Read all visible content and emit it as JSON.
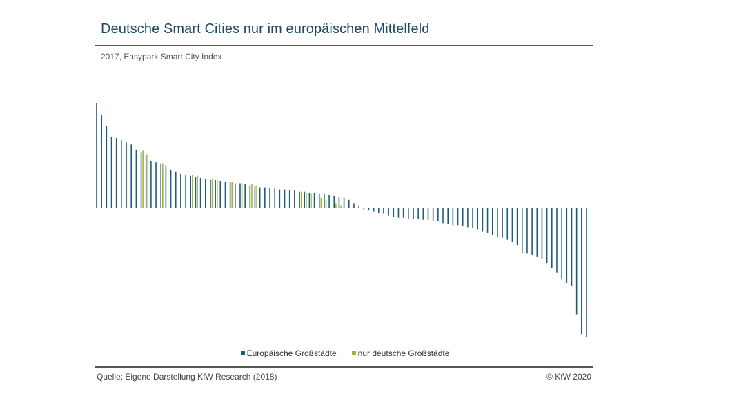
{
  "header": {
    "title": "Deutsche Smart Cities nur im europäischen Mittelfeld",
    "subtitle": "2017, Easypark Smart City Index"
  },
  "legend": {
    "items": [
      {
        "label": "Europäische Großstädte",
        "color": "#1f5c7a"
      },
      {
        "label": "nur deutsche Großstädte",
        "color": "#a3b52d"
      }
    ]
  },
  "footer": {
    "source": "Quelle: Eigene Darstellung KfW Research (2018)",
    "copyright": "© KfW 2020"
  },
  "chart_data": {
    "type": "bar",
    "xlabel": "",
    "ylabel": "",
    "ylim": [
      -1.22,
      1.0
    ],
    "grid": false,
    "legend_position": "bottom-center",
    "series": [
      {
        "name": "Europäische Großstädte",
        "color": "#1f5c7a",
        "values": [
          1.0,
          0.89,
          0.79,
          0.68,
          0.67,
          0.65,
          0.63,
          0.61,
          0.56,
          0.53,
          0.51,
          0.45,
          0.44,
          0.43,
          0.41,
          0.37,
          0.35,
          0.33,
          0.32,
          0.31,
          0.3,
          0.29,
          0.28,
          0.27,
          0.27,
          0.26,
          0.25,
          0.25,
          0.24,
          0.24,
          0.23,
          0.22,
          0.21,
          0.2,
          0.2,
          0.19,
          0.19,
          0.18,
          0.18,
          0.17,
          0.17,
          0.16,
          0.16,
          0.15,
          0.15,
          0.14,
          0.14,
          0.13,
          0.12,
          0.11,
          0.1,
          0.08,
          0.05,
          0.02,
          -0.01,
          -0.02,
          -0.03,
          -0.04,
          -0.05,
          -0.07,
          -0.08,
          -0.09,
          -0.09,
          -0.1,
          -0.1,
          -0.1,
          -0.11,
          -0.11,
          -0.12,
          -0.12,
          -0.14,
          -0.15,
          -0.16,
          -0.16,
          -0.17,
          -0.18,
          -0.19,
          -0.2,
          -0.22,
          -0.23,
          -0.25,
          -0.27,
          -0.28,
          -0.3,
          -0.32,
          -0.35,
          -0.42,
          -0.43,
          -0.44,
          -0.46,
          -0.48,
          -0.52,
          -0.57,
          -0.61,
          -0.67,
          -0.71,
          -0.74,
          -1.01,
          -1.2,
          -1.23
        ]
      },
      {
        "name": "nur deutsche Großstädte",
        "color": "#a3b52d",
        "values": [
          0.55,
          0.52,
          0.43,
          0.32,
          0.31,
          0.28,
          0.27,
          0.25,
          0.24,
          0.23,
          0.22,
          0.16,
          0.15,
          0.14,
          0.1,
          0.08,
          0.05,
          0.03
        ]
      }
    ]
  }
}
